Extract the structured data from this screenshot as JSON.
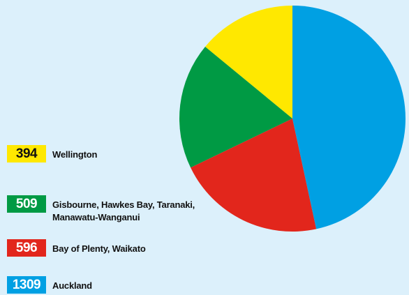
{
  "chart_data": {
    "type": "pie",
    "categories": [
      "Wellington",
      "Gisbourne, Hawkes Bay, Taranaki, Manawatu-Wanganui",
      "Bay of Plenty, Waikato",
      "Auckland"
    ],
    "values": [
      394,
      509,
      596,
      1309
    ],
    "colors": [
      "#ffe800",
      "#009a44",
      "#e2261c",
      "#00a0e3"
    ],
    "value_text_colors": [
      "#111111",
      "#ffffff",
      "#ffffff",
      "#ffffff"
    ]
  }
}
